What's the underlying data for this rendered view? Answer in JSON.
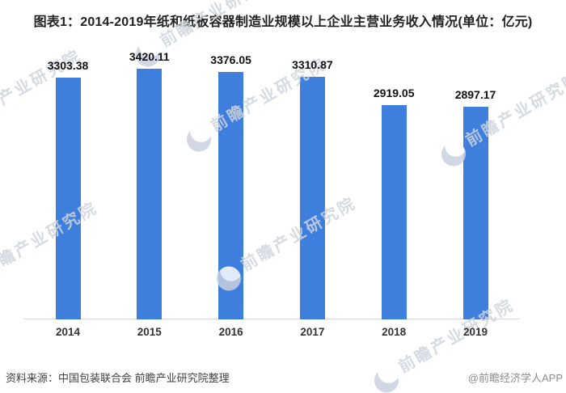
{
  "title": "图表1：2014-2019年纸和纸板容器制造业规模以上企业主营业务收入情况(单位：亿元)",
  "chart_data": {
    "type": "bar",
    "title": "图表1：2014-2019年纸和纸板容器制造业规模以上企业主营业务收入情况(单位：亿元)",
    "categories": [
      "2014",
      "2015",
      "2016",
      "2017",
      "2018",
      "2019"
    ],
    "values": [
      3303.38,
      3420.11,
      3376.05,
      3310.87,
      2919.05,
      2897.17
    ],
    "xlabel": "",
    "ylabel": "",
    "ylim": [
      0,
      3600
    ],
    "grid": false,
    "legend": false,
    "data_labels": true,
    "bar_color": "#3e7edc"
  },
  "watermark": {
    "text": "前瞻产业研究院",
    "subtext_placeholder": "· · · · · · · · · · · · · ·",
    "color": "#cfd4de"
  },
  "footer": {
    "source": "资料来源：中国包装联合会 前瞻产业研究院整理",
    "credit": "@前瞻经济学人APP"
  },
  "colors": {
    "bar": "#3e7edc",
    "title_text": "#222222",
    "value_label_text": "#111111",
    "tick_text": "#333333",
    "axis_line": "#d9d9d9",
    "source_text": "#404040",
    "credit_text": "#8c8c8c",
    "watermark": "#cfd4de",
    "background": "#ffffff"
  }
}
